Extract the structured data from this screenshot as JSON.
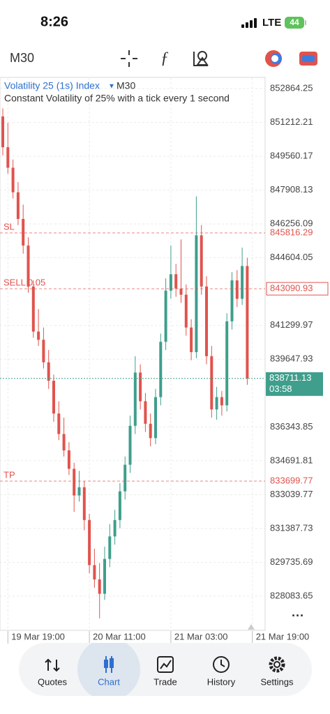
{
  "status_bar": {
    "time": "8:26",
    "network": "LTE",
    "battery": "44"
  },
  "chart_data": {
    "type": "candlestick",
    "title": "Volatility 25 (1s) Index",
    "timeframe": "M30",
    "subtitle": "Constant Volatility of 25% with a tick every 1 second",
    "categories": [
      null,
      "19 Mar 19:00",
      null,
      null,
      null,
      null,
      null,
      null,
      null,
      null,
      null,
      null,
      null,
      null,
      null,
      null,
      null,
      "20 Mar 11:00",
      null,
      null,
      null,
      null,
      null,
      null,
      null,
      null,
      null,
      null,
      null,
      null,
      null,
      null,
      null,
      "21 Mar 03:00",
      null,
      null,
      null,
      null,
      null,
      null,
      null,
      null,
      null,
      null,
      null,
      null,
      null,
      null,
      null,
      "21 Mar 19:00"
    ],
    "open": [
      851500,
      850000,
      849000,
      847800,
      846500,
      845200,
      843200,
      841000,
      840600,
      839500,
      838600,
      837000,
      836000,
      835200,
      834300,
      833000,
      833400,
      831800,
      829600,
      828900,
      828200,
      829900,
      831000,
      831800,
      833200,
      834500,
      836400,
      839000,
      837600,
      836500,
      835800,
      837800,
      840500,
      843000,
      843800,
      843100,
      842800,
      841200,
      840000,
      845700,
      843200,
      839800,
      837200,
      837800,
      837400,
      841500,
      843500,
      842600,
      844200,
      null
    ],
    "high": [
      851900,
      851200,
      849400,
      848300,
      847200,
      845600,
      843500,
      842100,
      841200,
      840100,
      838900,
      837600,
      836800,
      835600,
      834600,
      834200,
      833700,
      832100,
      830400,
      829700,
      830500,
      831600,
      832300,
      833600,
      834900,
      836900,
      839800,
      839400,
      838000,
      837000,
      838200,
      840900,
      843600,
      845200,
      844300,
      845500,
      843300,
      841600,
      847600,
      846200,
      843700,
      840300,
      838300,
      838100,
      841900,
      843900,
      844000,
      845100,
      844600,
      null
    ],
    "low": [
      849600,
      848700,
      847500,
      846200,
      844800,
      842900,
      840700,
      840300,
      839200,
      838200,
      836600,
      835700,
      834900,
      834000,
      832200,
      832700,
      831300,
      829200,
      828500,
      827000,
      827900,
      829500,
      830600,
      831400,
      832800,
      834100,
      836000,
      837200,
      836100,
      835400,
      835500,
      837400,
      840100,
      842600,
      842700,
      842400,
      840800,
      839600,
      839700,
      842800,
      839400,
      836800,
      836700,
      836900,
      837100,
      841100,
      842200,
      842300,
      838400,
      null
    ],
    "close": [
      850000,
      849000,
      847800,
      846500,
      845200,
      843200,
      841000,
      840600,
      839500,
      838600,
      837000,
      836000,
      835200,
      834300,
      833000,
      833400,
      831800,
      829600,
      828900,
      828200,
      829900,
      831000,
      831800,
      833200,
      834500,
      836400,
      839000,
      837600,
      836500,
      835800,
      837800,
      840500,
      843000,
      843800,
      843100,
      842800,
      841200,
      840000,
      845700,
      843200,
      839800,
      837200,
      837800,
      837400,
      841500,
      843500,
      842600,
      844200,
      838711.13,
      null
    ],
    "up_color": "#3f9e8c",
    "down_color": "#e0534d",
    "ylim": [
      826450,
      853375
    ],
    "yticks": [
      852864.25,
      851212.21,
      849560.17,
      847908.13,
      846256.09,
      844604.05,
      841299.97,
      839647.93,
      836343.85,
      834691.81,
      833039.77,
      831387.73,
      829735.69,
      828083.65
    ],
    "grid": true,
    "levels": [
      {
        "label": "SL",
        "value": 845816.29,
        "color": "#e0534d"
      },
      {
        "label": "SELL 0.05",
        "value": 843090.93,
        "color": "#e0534d"
      },
      {
        "label": "TP",
        "value": 833699.77,
        "color": "#e0534d"
      }
    ],
    "current_price": 838711.13,
    "current_color": "#3f9e8c",
    "countdown": "03:58"
  },
  "nav": {
    "items": [
      {
        "label": "Quotes"
      },
      {
        "label": "Chart"
      },
      {
        "label": "Trade"
      },
      {
        "label": "History"
      },
      {
        "label": "Settings"
      }
    ],
    "active": 1
  }
}
